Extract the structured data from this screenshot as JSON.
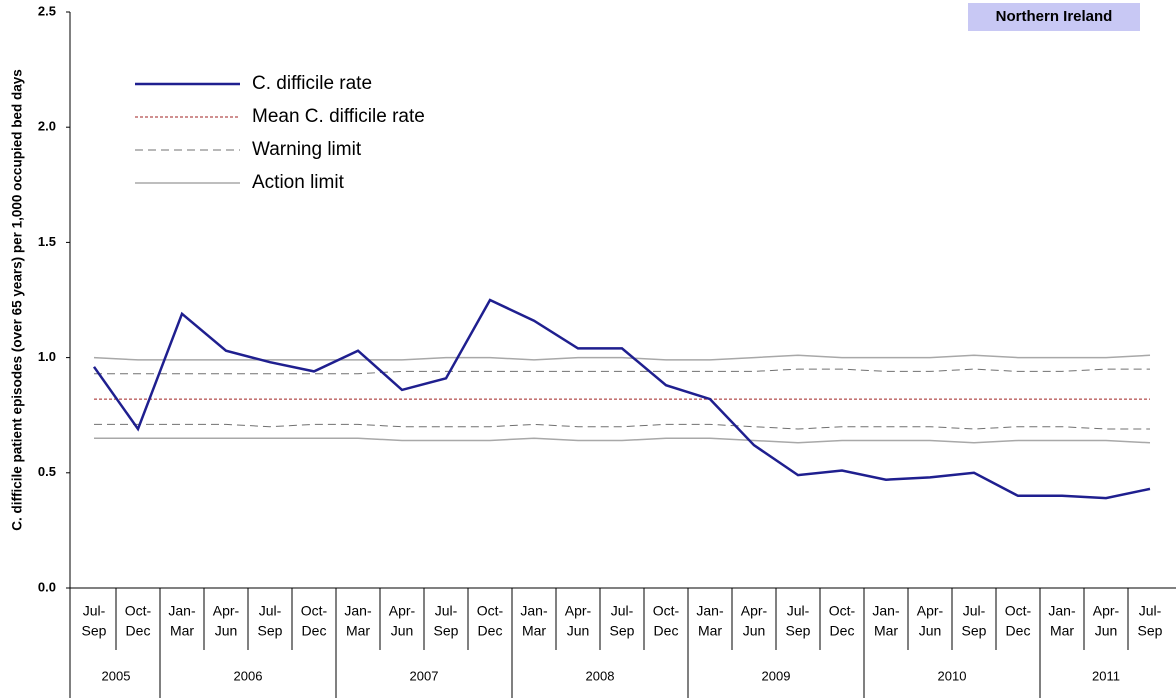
{
  "chart_data": {
    "type": "line",
    "region": "Northern Ireland",
    "y_label": "C. difficile patient episodes (over 65 years) per 1,000 occupied bed days",
    "categories": [
      [
        "Jul-",
        "Sep"
      ],
      [
        "Oct-",
        "Dec"
      ],
      [
        "Jan-",
        "Mar"
      ],
      [
        "Apr-",
        "Jun"
      ],
      [
        "Jul-",
        "Sep"
      ],
      [
        "Oct-",
        "Dec"
      ],
      [
        "Jan-",
        "Mar"
      ],
      [
        "Apr-",
        "Jun"
      ],
      [
        "Jul-",
        "Sep"
      ],
      [
        "Oct-",
        "Dec"
      ],
      [
        "Jan-",
        "Mar"
      ],
      [
        "Apr-",
        "Jun"
      ],
      [
        "Jul-",
        "Sep"
      ],
      [
        "Oct-",
        "Dec"
      ],
      [
        "Jan-",
        "Mar"
      ],
      [
        "Apr-",
        "Jun"
      ],
      [
        "Jul-",
        "Sep"
      ],
      [
        "Oct-",
        "Dec"
      ],
      [
        "Jan-",
        "Mar"
      ],
      [
        "Apr-",
        "Jun"
      ],
      [
        "Jul-",
        "Sep"
      ],
      [
        "Oct-",
        "Dec"
      ],
      [
        "Jan-",
        "Mar"
      ],
      [
        "Apr-",
        "Jun"
      ],
      [
        "Jul-",
        "Sep"
      ]
    ],
    "years": [
      {
        "label": "2005",
        "quarters": 2
      },
      {
        "label": "2006",
        "quarters": 4
      },
      {
        "label": "2007",
        "quarters": 4
      },
      {
        "label": "2008",
        "quarters": 4
      },
      {
        "label": "2009",
        "quarters": 4
      },
      {
        "label": "2010",
        "quarters": 4
      },
      {
        "label": "2011",
        "quarters": 3
      }
    ],
    "series": [
      {
        "name": "C. difficile rate",
        "color": "#1f1f8f",
        "dash": "none",
        "width": 2.5,
        "values": [
          0.96,
          0.69,
          1.19,
          1.03,
          0.98,
          0.94,
          1.03,
          0.86,
          0.91,
          1.25,
          1.16,
          1.04,
          1.04,
          0.88,
          0.82,
          0.62,
          0.49,
          0.51,
          0.47,
          0.48,
          0.5,
          0.4,
          0.4,
          0.39,
          0.43
        ]
      },
      {
        "name": "Mean C. difficile rate",
        "color": "#a02020",
        "dash": "3 2",
        "width": 1,
        "values": [
          0.82,
          0.82,
          0.82,
          0.82,
          0.82,
          0.82,
          0.82,
          0.82,
          0.82,
          0.82,
          0.82,
          0.82,
          0.82,
          0.82,
          0.82,
          0.82,
          0.82,
          0.82,
          0.82,
          0.82,
          0.82,
          0.82,
          0.82,
          0.82,
          0.82
        ]
      },
      {
        "name": "Warning limit",
        "color": "#707070",
        "dash": "8 5",
        "width": 1,
        "values": [
          0.93,
          0.93,
          0.93,
          0.93,
          0.93,
          0.93,
          0.93,
          0.94,
          0.94,
          0.94,
          0.94,
          0.94,
          0.94,
          0.94,
          0.94,
          0.94,
          0.95,
          0.95,
          0.94,
          0.94,
          0.95,
          0.94,
          0.94,
          0.95,
          0.95
        ],
        "values_lower": [
          0.71,
          0.71,
          0.71,
          0.71,
          0.7,
          0.71,
          0.71,
          0.7,
          0.7,
          0.7,
          0.71,
          0.7,
          0.7,
          0.71,
          0.71,
          0.7,
          0.69,
          0.7,
          0.7,
          0.7,
          0.69,
          0.7,
          0.7,
          0.69,
          0.69
        ]
      },
      {
        "name": "Action limit",
        "color": "#a8a8a8",
        "dash": "none",
        "width": 1.5,
        "values": [
          1.0,
          0.99,
          0.99,
          0.99,
          0.99,
          0.99,
          0.99,
          0.99,
          1.0,
          1.0,
          0.99,
          1.0,
          1.0,
          0.99,
          0.99,
          1.0,
          1.01,
          1.0,
          1.0,
          1.0,
          1.01,
          1.0,
          1.0,
          1.0,
          1.01
        ],
        "values_lower": [
          0.65,
          0.65,
          0.65,
          0.65,
          0.65,
          0.65,
          0.65,
          0.64,
          0.64,
          0.64,
          0.65,
          0.64,
          0.64,
          0.65,
          0.65,
          0.64,
          0.63,
          0.64,
          0.64,
          0.64,
          0.63,
          0.64,
          0.64,
          0.64,
          0.63
        ]
      }
    ],
    "ylim": [
      0,
      2.5
    ],
    "yticks": [
      {
        "value": 0,
        "label": "0.0"
      },
      0.5,
      {
        "value": 1,
        "label": "1.0"
      },
      1.5,
      {
        "value": 2,
        "label": "2.0"
      },
      2.5
    ],
    "grid": false
  }
}
